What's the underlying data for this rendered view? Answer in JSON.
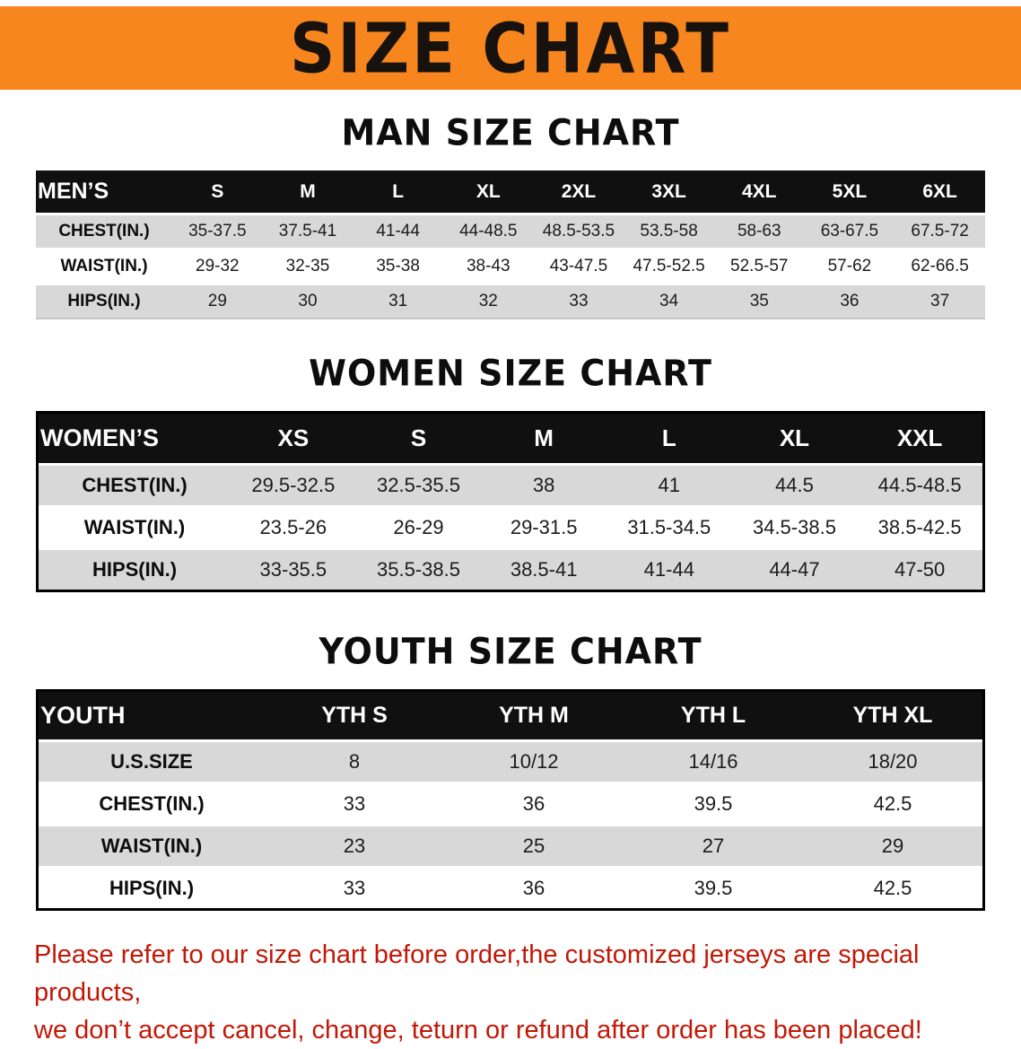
{
  "banner": {
    "title": "SIZE CHART"
  },
  "colors": {
    "banner_bg": "#F6861D",
    "table_header_bg": "#101010",
    "table_header_text": "#FFFFFF",
    "row_stripe": "#D8D8D8",
    "footer_text": "#C21807"
  },
  "chart_data": [
    {
      "type": "table",
      "title": "MAN SIZE CHART",
      "columns": [
        "MEN’S",
        "S",
        "M",
        "L",
        "XL",
        "2XL",
        "3XL",
        "4XL",
        "5XL",
        "6XL"
      ],
      "rows": [
        [
          "CHEST(IN.)",
          "35-37.5",
          "37.5-41",
          "41-44",
          "44-48.5",
          "48.5-53.5",
          "53.5-58",
          "58-63",
          "63-67.5",
          "67.5-72"
        ],
        [
          "WAIST(IN.)",
          "29-32",
          "32-35",
          "35-38",
          "38-43",
          "43-47.5",
          "47.5-52.5",
          "52.5-57",
          "57-62",
          "62-66.5"
        ],
        [
          "HIPS(IN.)",
          "29",
          "30",
          "31",
          "32",
          "33",
          "34",
          "35",
          "36",
          "37"
        ]
      ]
    },
    {
      "type": "table",
      "title": "WOMEN SIZE CHART",
      "columns": [
        "WOMEN’S",
        "XS",
        "S",
        "M",
        "L",
        "XL",
        "XXL"
      ],
      "rows": [
        [
          "CHEST(IN.)",
          "29.5-32.5",
          "32.5-35.5",
          "38",
          "41",
          "44.5",
          "44.5-48.5"
        ],
        [
          "WAIST(IN.)",
          "23.5-26",
          "26-29",
          "29-31.5",
          "31.5-34.5",
          "34.5-38.5",
          "38.5-42.5"
        ],
        [
          "HIPS(IN.)",
          "33-35.5",
          "35.5-38.5",
          "38.5-41",
          "41-44",
          "44-47",
          "47-50"
        ]
      ]
    },
    {
      "type": "table",
      "title": "YOUTH SIZE CHART",
      "columns": [
        "YOUTH",
        "YTH S",
        "YTH M",
        "YTH L",
        "YTH XL"
      ],
      "rows": [
        [
          "U.S.SIZE",
          "8",
          "10/12",
          "14/16",
          "18/20"
        ],
        [
          "CHEST(IN.)",
          "33",
          "36",
          "39.5",
          "42.5"
        ],
        [
          "WAIST(IN.)",
          "23",
          "25",
          "27",
          "29"
        ],
        [
          "HIPS(IN.)",
          "33",
          "36",
          "39.5",
          "42.5"
        ]
      ]
    }
  ],
  "footer": {
    "line1": "Please refer to our size chart before order,the customized jerseys are special products,",
    "line2": "we don’t accept cancel, change, teturn or refund after order has been placed!"
  }
}
